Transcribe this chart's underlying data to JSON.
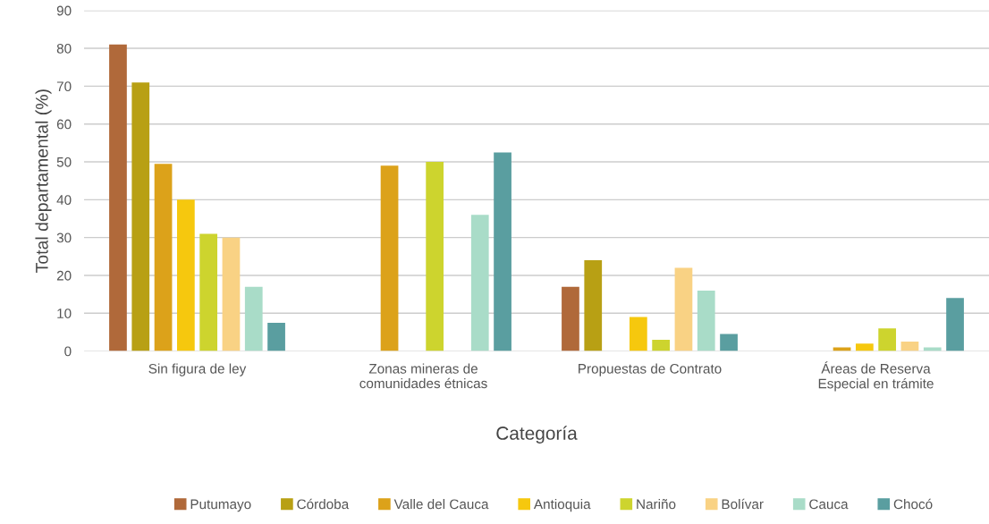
{
  "chart_data": {
    "type": "bar",
    "xlabel": "Categoría",
    "ylabel": "Total departamental (%)",
    "categories": [
      "Sin figura de ley",
      "Zonas mineras de\ncomunidades étnicas",
      "Propuestas de Contrato",
      "Áreas de Reserva\nEspecial en trámite"
    ],
    "series": [
      {
        "name": "Putumayo",
        "color": "#b0693a",
        "values": [
          81,
          0,
          17,
          0
        ]
      },
      {
        "name": "Córdoba",
        "color": "#b8a014",
        "values": [
          71,
          0,
          24,
          0
        ]
      },
      {
        "name": "Valle del Cauca",
        "color": "#dca21a",
        "values": [
          49.5,
          49,
          0,
          1
        ]
      },
      {
        "name": "Antioquia",
        "color": "#f6c80e",
        "values": [
          40,
          0,
          9,
          2
        ]
      },
      {
        "name": "Nariño",
        "color": "#cdd42e",
        "values": [
          31,
          50,
          3,
          6
        ]
      },
      {
        "name": "Bolívar",
        "color": "#f9d284",
        "values": [
          30,
          0,
          22,
          2.5
        ]
      },
      {
        "name": "Cauca",
        "color": "#a9dcc8",
        "values": [
          17,
          36,
          16,
          1
        ]
      },
      {
        "name": "Chocó",
        "color": "#5a9ea0",
        "values": [
          7.5,
          52.5,
          4.5,
          14
        ]
      }
    ],
    "ylim": [
      0,
      90
    ],
    "yticks": [
      0,
      10,
      20,
      30,
      40,
      50,
      60,
      70,
      80,
      90
    ],
    "grid": "y",
    "legend": "bottom"
  }
}
